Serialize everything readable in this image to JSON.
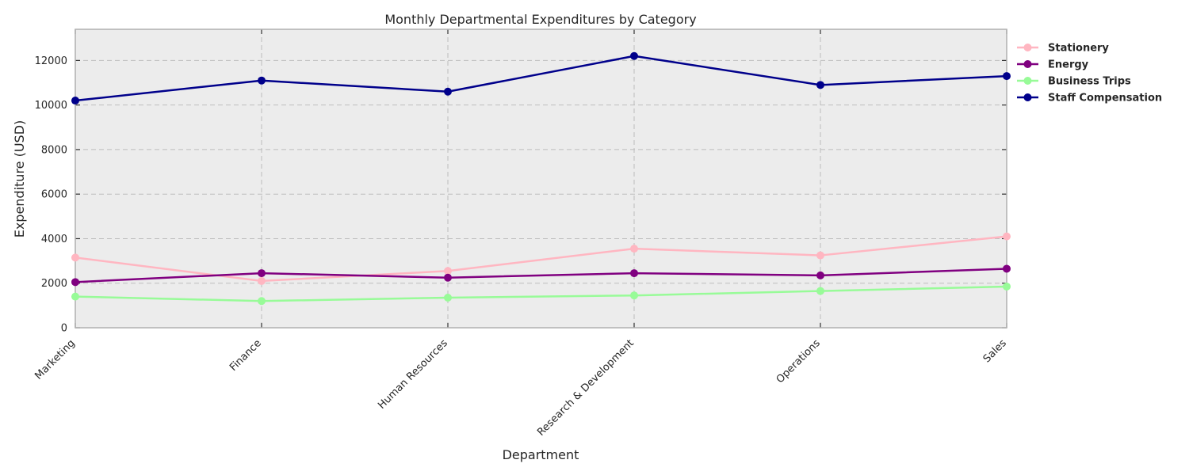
{
  "chart_data": {
    "type": "line",
    "title": "Monthly Departmental Expenditures by Category",
    "xlabel": "Department",
    "ylabel": "Expenditure (USD)",
    "categories": [
      "Marketing",
      "Finance",
      "Human Resources",
      "Research & Development",
      "Operations",
      "Sales"
    ],
    "ylim": [
      0,
      13400
    ],
    "yticks": [
      0,
      2000,
      4000,
      6000,
      8000,
      10000,
      12000
    ],
    "grid": true,
    "legend_position": "outside-top-right",
    "plot_background": "#ececec",
    "series": [
      {
        "name": "Stationery",
        "color": "#ffb6c1",
        "values": [
          3150,
          2100,
          2550,
          3550,
          3250,
          4100
        ]
      },
      {
        "name": "Energy",
        "color": "#800080",
        "values": [
          2050,
          2450,
          2250,
          2450,
          2350,
          2650
        ]
      },
      {
        "name": "Business Trips",
        "color": "#98fb98",
        "values": [
          1400,
          1200,
          1350,
          1450,
          1650,
          1850
        ]
      },
      {
        "name": "Staff Compensation",
        "color": "#00008b",
        "values": [
          10200,
          11100,
          10600,
          12200,
          10900,
          11300
        ]
      }
    ]
  }
}
